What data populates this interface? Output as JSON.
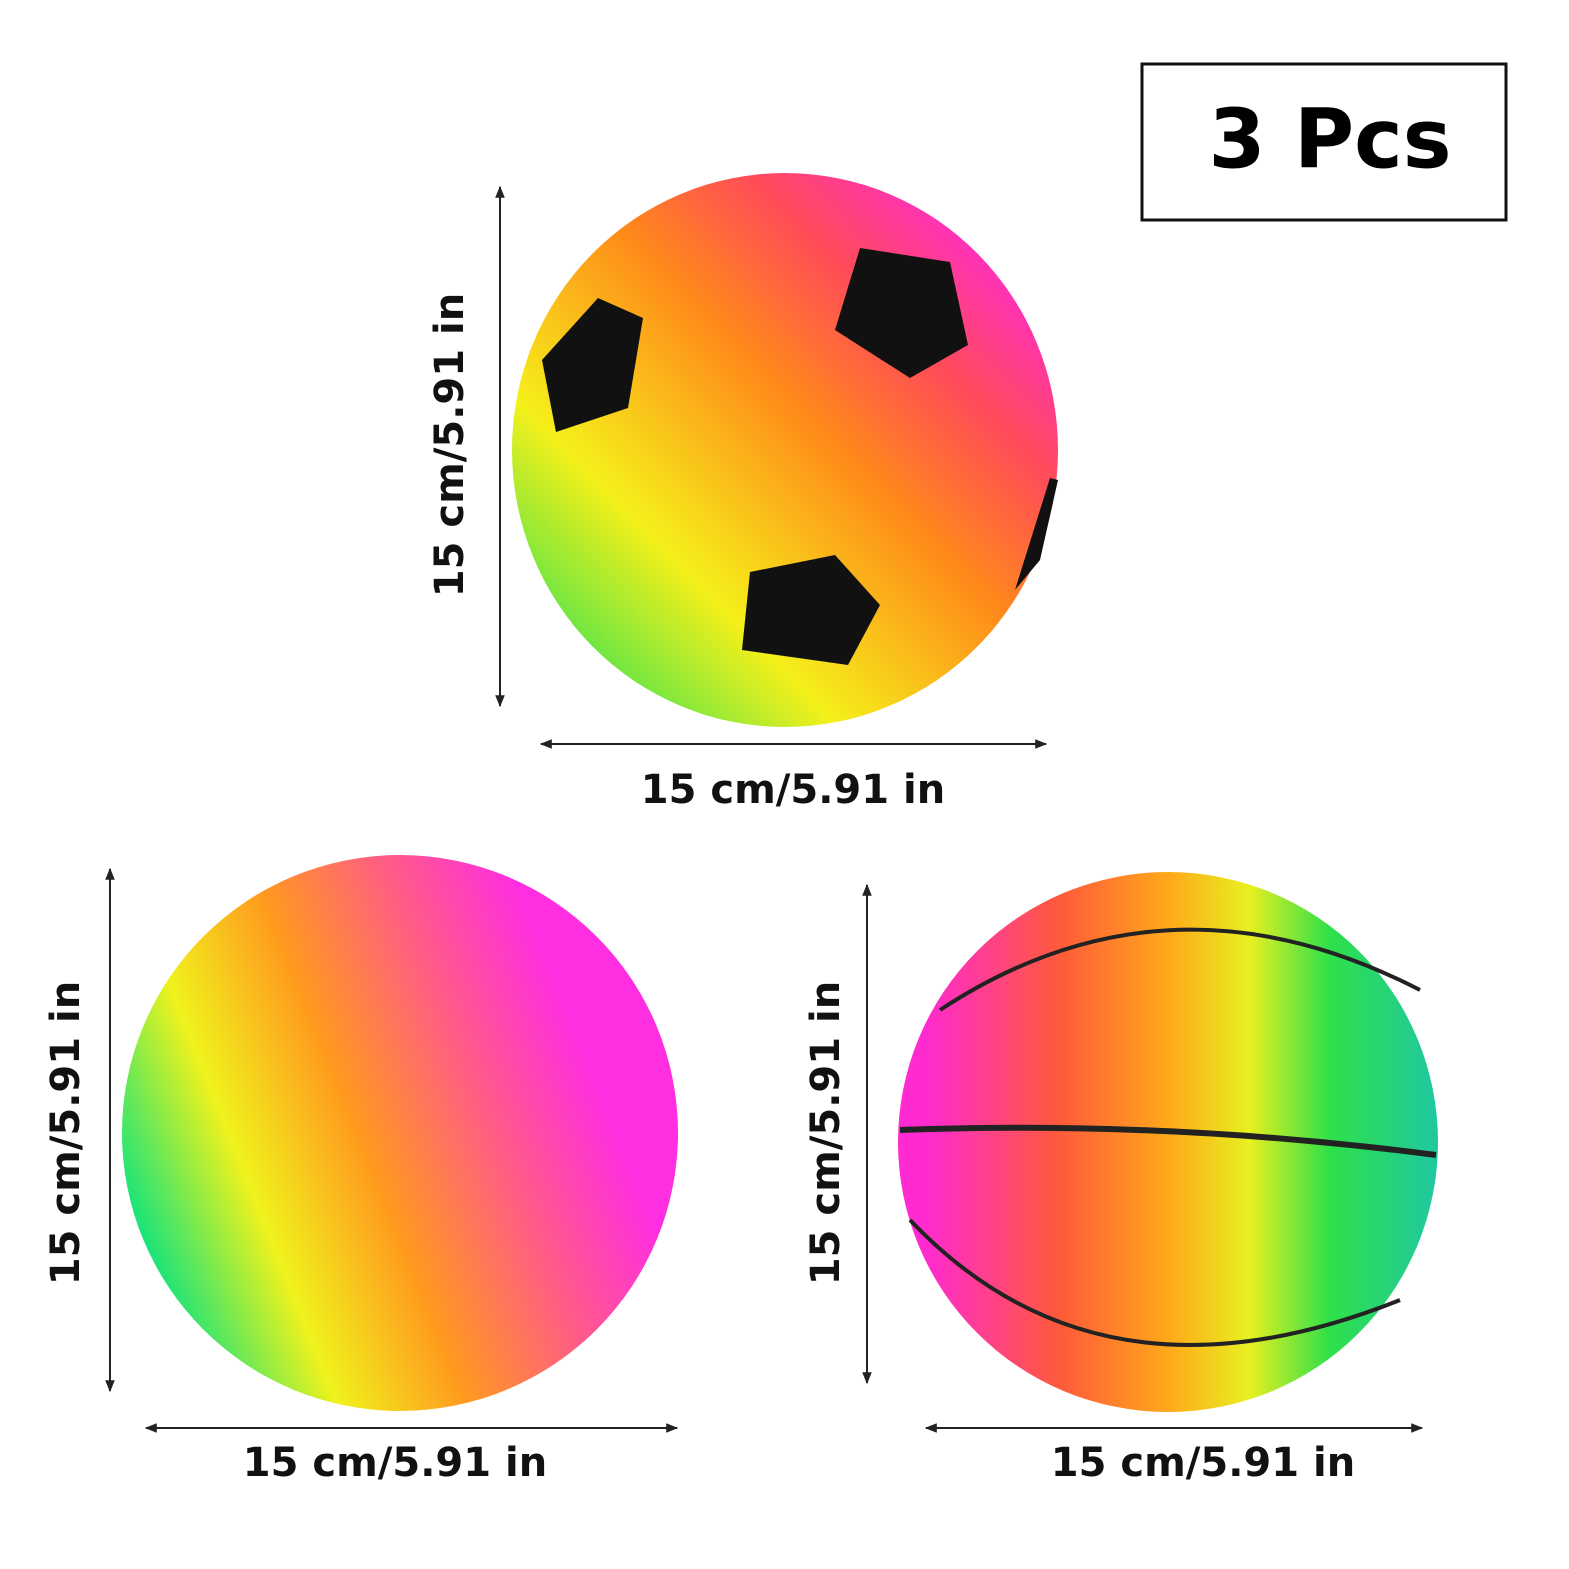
{
  "badge": "3 Pcs",
  "balls": [
    {
      "height": "15 cm/5.91 in",
      "width": "15 cm/5.91 in"
    },
    {
      "height": "15 cm/5.91 in",
      "width": "15 cm/5.91 in"
    },
    {
      "height": "15 cm/5.91 in",
      "width": "15 cm/5.91 in"
    }
  ]
}
